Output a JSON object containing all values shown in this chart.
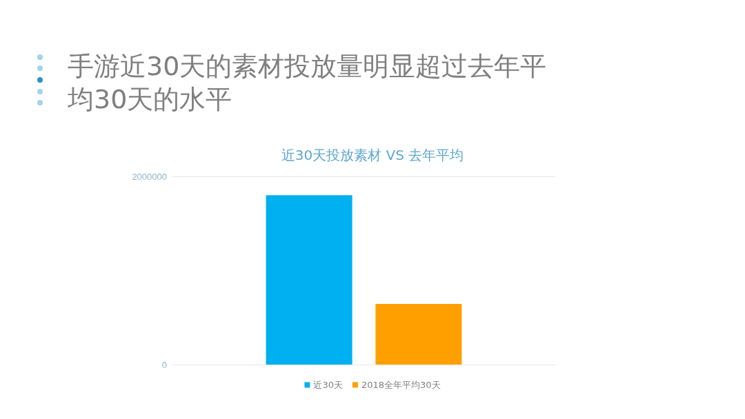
{
  "chart_data": {
    "type": "bar",
    "title": "手游近30天的素材投放量明显超过去年平均30天的水平",
    "subtitle": "近30天投放素材 VS 去年平均",
    "categories": [
      null
    ],
    "series": [
      {
        "name": "近30天",
        "color": "#00b0f0",
        "values": [
          1800000
        ]
      },
      {
        "name": "2018全年平均30天",
        "color": "#ffa000",
        "values": [
          645000
        ]
      }
    ],
    "ylim": [
      0,
      2000000
    ],
    "yticks": [
      0,
      2000000
    ],
    "grid": "y",
    "legend": "bottom"
  }
}
